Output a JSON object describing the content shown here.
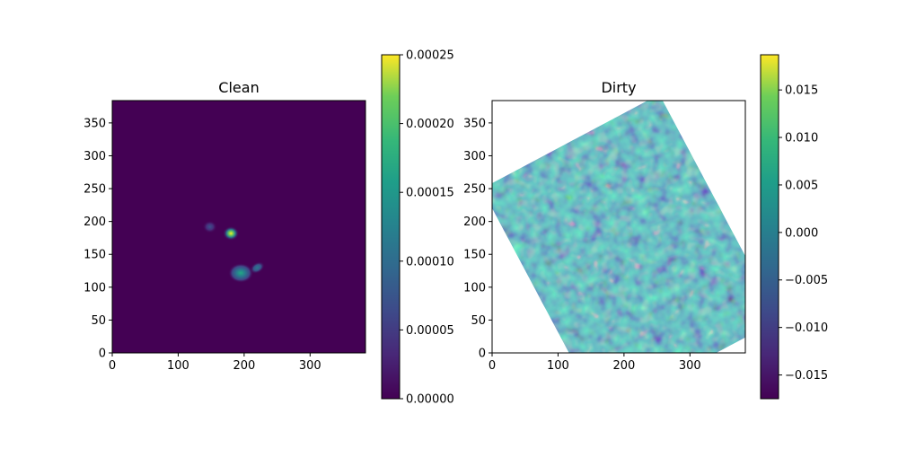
{
  "chart_data": [
    {
      "type": "heatmap",
      "title": "Clean",
      "xlabel": "",
      "ylabel": "",
      "xlim": [
        0,
        384
      ],
      "ylim": [
        0,
        384
      ],
      "xticks": [
        "0",
        "100",
        "200",
        "300"
      ],
      "yticks": [
        "0",
        "50",
        "100",
        "150",
        "200",
        "250",
        "300",
        "350"
      ],
      "colormap": "viridis",
      "colorbar": {
        "range": [
          0,
          0.00025
        ],
        "ticks": [
          "0.00000",
          "0.00005",
          "0.00010",
          "0.00015",
          "0.00020",
          "0.00025"
        ]
      },
      "sources": [
        {
          "x": 148,
          "y": 191,
          "peak": 8e-05
        },
        {
          "x": 180,
          "y": 181,
          "peak": 0.00025
        },
        {
          "x": 195,
          "y": 121,
          "peak": 0.00013
        },
        {
          "x": 220,
          "y": 129,
          "peak": 8e-05
        }
      ]
    },
    {
      "type": "heatmap",
      "title": "Dirty",
      "xlabel": "",
      "ylabel": "",
      "xlim": [
        0,
        384
      ],
      "ylim": [
        0,
        384
      ],
      "xticks": [
        "0",
        "100",
        "200",
        "300"
      ],
      "yticks": [
        "0",
        "50",
        "100",
        "150",
        "200",
        "250",
        "300",
        "350"
      ],
      "colormap": "viridis",
      "colorbar": {
        "range": [
          -0.0175,
          0.0187
        ],
        "ticks": [
          "−0.015",
          "−0.010",
          "−0.005",
          "0.000",
          "0.005",
          "0.010",
          "0.015"
        ]
      },
      "footprint": {
        "shape": "ellipse",
        "center_x": 210,
        "center_y": 150,
        "radius_x": 150,
        "radius_y": 190,
        "rotation_deg": -28
      },
      "background_color": "#ffffff"
    }
  ]
}
